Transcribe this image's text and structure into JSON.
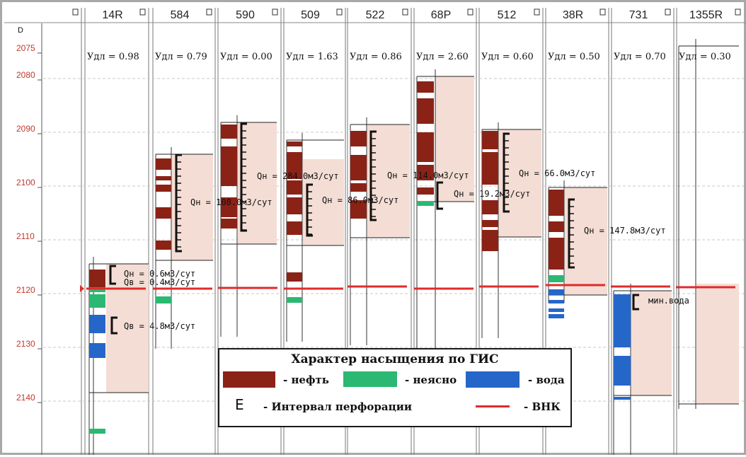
{
  "depth_header": "D",
  "depth_ticks": [
    "2075",
    "2080",
    "2090",
    "2100",
    "2110",
    "2120",
    "2130",
    "2140"
  ],
  "colors": {
    "oil": "#8b2216",
    "unclear": "#2bb873",
    "water": "#2566c9",
    "owc": "#e02b2b",
    "zone": "#f4ddd4",
    "depth_label": "#c0392b"
  },
  "wells": [
    {
      "name": "14R",
      "udl": "Удл = 0.98"
    },
    {
      "name": "584",
      "udl": "Удл = 0.79"
    },
    {
      "name": "590",
      "udl": "Удл = 0.00"
    },
    {
      "name": "509",
      "udl": "Удл = 1.63"
    },
    {
      "name": "522",
      "udl": "Удл = 0.86"
    },
    {
      "name": "68P",
      "udl": "Удл = 2.60"
    },
    {
      "name": "512",
      "udl": "Удл = 0.60"
    },
    {
      "name": "38R",
      "udl": "Удл = 0.50"
    },
    {
      "name": "731",
      "udl": "Удл = 0.70"
    },
    {
      "name": "1355R",
      "udl": "Удл = 0.30"
    }
  ],
  "flow_labels": [
    "Qн = 0.6м3/сут",
    "Qв = 0.4м3/сут",
    "Qв = 4.8м3/сут",
    "Qн = 108.0м3/сут",
    "Qн = 284.0м3/сут",
    "Qн = 86.0м3/сут",
    "Qн = 114.0м3/сут",
    "Qн = 19.2м3/сут",
    "Qн = 66.0м3/сут",
    "Qн = 147.8м3/сут",
    "мин.вода"
  ],
  "legend": {
    "title": "Характер насыщения по ГИС",
    "oil": "- нефть",
    "unclear": "- неясно",
    "water": "- вода",
    "perforation_symbol": "E",
    "perforation": "- Интервал перфорации",
    "owc": "- ВНК"
  }
}
